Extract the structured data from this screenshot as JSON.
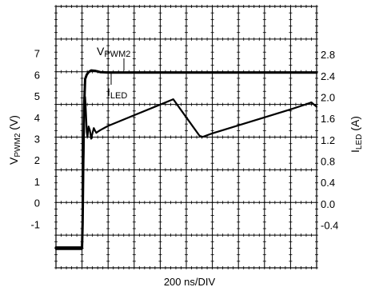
{
  "chart_data": {
    "type": "line",
    "x_divisions": 10,
    "y_divisions": 8,
    "xlabel": "200 ns/DIV",
    "ylabel_left": {
      "main": "V",
      "sub": "PWM2",
      "suffix": " (V)"
    },
    "ylabel_right": {
      "main": "I",
      "sub": "LED",
      "suffix": " (A)"
    },
    "left_ticks": [
      "7",
      "6",
      "5",
      "4",
      "3",
      "2",
      "1",
      "0",
      "-1"
    ],
    "left_tick_values": [
      7,
      6,
      5,
      4,
      3,
      2,
      1,
      0,
      -1
    ],
    "left_ylim": [
      -3.05,
      9.2
    ],
    "right_ticks": [
      "2.8",
      "2.4",
      "2.0",
      "1.6",
      "1.2",
      "0.8",
      "0.4",
      "0.0",
      "-0.4"
    ],
    "right_tick_values": [
      2.8,
      2.4,
      2.0,
      1.6,
      1.2,
      0.8,
      0.4,
      0.0,
      -0.4
    ],
    "right_ylim": [
      -1.2,
      3.7
    ],
    "grid": true,
    "grid_style": "dotted minor ticks along each division line",
    "series": [
      {
        "name": "PWM2",
        "label_main": "V",
        "label_sub": "PWM2",
        "axis": "left",
        "x": [
          0,
          1.0,
          1.02,
          1.05,
          1.08,
          1.12,
          1.18,
          1.25,
          1.35,
          1.5,
          1.7,
          2.0,
          2.5,
          3.0,
          4.0,
          5.0,
          6.0,
          7.0,
          8.0,
          9.0,
          10.0
        ],
        "values": [
          -2.1,
          -2.1,
          -1.0,
          2.0,
          4.5,
          5.8,
          6.0,
          6.12,
          6.2,
          6.18,
          6.12,
          6.1,
          6.1,
          6.1,
          6.1,
          6.1,
          6.1,
          6.1,
          6.1,
          6.1,
          6.1
        ]
      },
      {
        "name": "LED",
        "label_main": "I",
        "label_sub": "LED",
        "axis": "right",
        "x": [
          0,
          0.95,
          1.0,
          1.03,
          1.06,
          1.09,
          1.12,
          1.15,
          1.18,
          1.21,
          1.25,
          1.3,
          1.35,
          1.4,
          1.45,
          1.5,
          1.55,
          1.6,
          1.7,
          2.0,
          3.0,
          4.0,
          4.4,
          4.5,
          5.0,
          5.5,
          5.6,
          6.0,
          7.0,
          8.0,
          9.0,
          9.5,
          9.8,
          10.0
        ],
        "values": [
          -0.85,
          -0.85,
          -0.85,
          0.1,
          1.0,
          1.8,
          2.0,
          1.7,
          1.35,
          1.25,
          1.45,
          1.38,
          1.22,
          1.32,
          1.42,
          1.37,
          1.33,
          1.35,
          1.38,
          1.46,
          1.66,
          1.86,
          1.94,
          1.96,
          1.62,
          1.28,
          1.25,
          1.32,
          1.47,
          1.62,
          1.77,
          1.85,
          1.9,
          1.82
        ]
      }
    ]
  }
}
